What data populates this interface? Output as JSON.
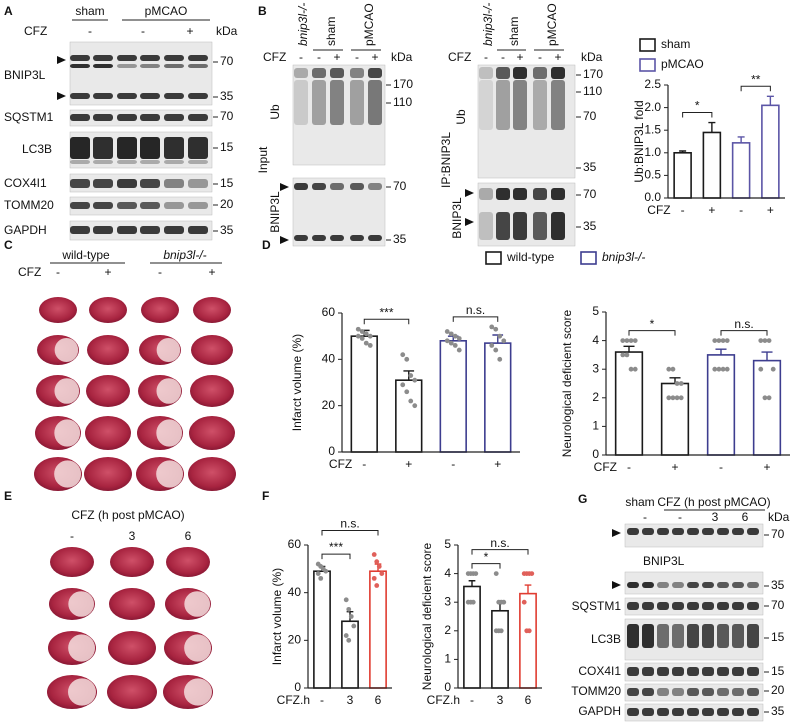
{
  "panels": {
    "A": {
      "label": "A",
      "groups": [
        "sham",
        "pMCAO"
      ],
      "treatment": "CFZ",
      "lanes": [
        "-",
        "-",
        "+"
      ],
      "unit": "kDa",
      "rows": [
        {
          "name": "BNIP3L",
          "markers": [
            70,
            35
          ]
        },
        {
          "name": "SQSTM1",
          "markers": [
            70
          ]
        },
        {
          "name": "LC3B",
          "markers": [
            15
          ]
        },
        {
          "name": "COX4I1",
          "markers": [
            15
          ]
        },
        {
          "name": "TOMM20",
          "markers": [
            20
          ]
        },
        {
          "name": "GAPDH",
          "markers": [
            35
          ]
        }
      ]
    },
    "B": {
      "label": "B",
      "input": {
        "title": "Input",
        "groups": [
          "bnip3l-/-",
          "sham",
          "pMCAO"
        ],
        "treatment": "CFZ",
        "lanes": [
          "-",
          "-",
          "+",
          "-",
          "+"
        ],
        "unit": "kDa",
        "rows": [
          {
            "name": "Ub",
            "markers": [
              170,
              110
            ]
          },
          {
            "name": "BNIP3L",
            "markers": [
              70,
              35
            ]
          }
        ]
      },
      "ip": {
        "title": "IP:BNIP3L",
        "groups": [
          "bnip3l-/-",
          "sham",
          "pMCAO"
        ],
        "treatment": "CFZ",
        "lanes": [
          "-",
          "-",
          "+",
          "-",
          "+"
        ],
        "unit": "kDa",
        "rows": [
          {
            "name": "Ub",
            "markers": [
              170,
              110,
              70,
              35
            ]
          },
          {
            "name": "BNIP3L",
            "markers": [
              70,
              35
            ]
          }
        ]
      }
    },
    "C": {
      "label": "C",
      "groups": [
        "wild-type",
        "bnip3l-/-"
      ],
      "treatment": "CFZ",
      "lanes": [
        "-",
        "+",
        "-",
        "+"
      ]
    },
    "D": {
      "label": "D"
    },
    "E": {
      "label": "E",
      "title": "CFZ (h post pMCAO)",
      "lanes": [
        "-",
        "3",
        "6"
      ]
    },
    "F": {
      "label": "F"
    },
    "G": {
      "label": "G",
      "groups": [
        "sham",
        "CFZ (h post pMCAO)"
      ],
      "lanes": [
        "-",
        "-",
        "3",
        "6"
      ],
      "unit": "kDa",
      "rows": [
        {
          "name": "BNIP3L",
          "markers": [
            70,
            35
          ]
        },
        {
          "name": "SQSTM1",
          "markers": [
            70
          ]
        },
        {
          "name": "LC3B",
          "markers": [
            15
          ]
        },
        {
          "name": "COX4I1",
          "markers": [
            15
          ]
        },
        {
          "name": "TOMM20",
          "markers": [
            20
          ]
        },
        {
          "name": "GAPDH",
          "markers": [
            35
          ]
        }
      ]
    }
  },
  "chart_data": [
    {
      "type": "bar",
      "ylabel": "Ub:BNIP3L fold",
      "xlabel": "CFZ",
      "categories": [
        "-",
        "+",
        "-",
        "+"
      ],
      "series": [
        {
          "name": "sham",
          "color": "#1a1a1a",
          "values": [
            1.0,
            1.45,
            null,
            null
          ],
          "errors": [
            0.04,
            0.22,
            null,
            null
          ]
        },
        {
          "name": "pMCAO",
          "color": "#5b55a6",
          "values": [
            null,
            null,
            1.22,
            2.05
          ],
          "errors": [
            null,
            null,
            0.13,
            0.2
          ]
        }
      ],
      "ylim": [
        0,
        2.5
      ],
      "yticks": [
        {
          "value": 0,
          "label": "0.0"
        },
        0.5,
        {
          "value": 1,
          "label": "1.0"
        },
        1.5,
        {
          "value": 2,
          "label": "2.0"
        },
        2.5
      ],
      "annotations": [
        {
          "text": "*",
          "between": [
            0,
            1
          ]
        },
        {
          "text": "**",
          "between": [
            2,
            3
          ]
        }
      ]
    },
    {
      "type": "bar",
      "ylabel": "Infarct volume (%)",
      "xlabel": "CFZ",
      "categories": [
        "-",
        "+",
        "-",
        "+"
      ],
      "series": [
        {
          "name": "wild-type",
          "color": "#1a1a1a",
          "point_color": "#8c8c8c",
          "values": [
            50,
            31,
            null,
            null
          ],
          "errors": [
            2.5,
            4,
            null,
            null
          ],
          "points": [
            [
              53,
              52,
              51,
              50,
              50,
              49,
              47,
              46
            ],
            [
              42,
              40,
              33,
              31,
              29,
              26,
              22,
              20
            ],
            null,
            null
          ]
        },
        {
          "name": "bnip3l-/-",
          "color": "#3d3d8f",
          "point_color": "#8c8c8c",
          "values": [
            null,
            null,
            48,
            47
          ],
          "errors": [
            null,
            null,
            2,
            3.5
          ],
          "points": [
            null,
            null,
            [
              52,
              51,
              50,
              49,
              48,
              47,
              46,
              44
            ],
            [
              54,
              53,
              50,
              48,
              46,
              44,
              40
            ]
          ]
        }
      ],
      "ylim": [
        0,
        60
      ],
      "yticks": [
        0,
        20,
        40,
        60
      ],
      "annotations": [
        {
          "text": "***",
          "between": [
            0,
            1
          ]
        },
        {
          "text": "n.s.",
          "between": [
            2,
            3
          ]
        }
      ]
    },
    {
      "type": "bar",
      "ylabel": "Neurological deficient score",
      "xlabel": "CFZ",
      "categories": [
        "-",
        "+",
        "-",
        "+"
      ],
      "series": [
        {
          "color": "#1a1a1a",
          "point_color": "#8c8c8c",
          "values": [
            3.6,
            2.5,
            null,
            null
          ],
          "errors": [
            0.2,
            0.2,
            null,
            null
          ],
          "points": [
            [
              4,
              4,
              4,
              4,
              3.5,
              3.5,
              3,
              3
            ],
            [
              3,
              3,
              2.5,
              2.5,
              2,
              2,
              2,
              2
            ],
            null,
            null
          ]
        },
        {
          "color": "#3d3d8f",
          "point_color": "#8c8c8c",
          "values": [
            null,
            null,
            3.5,
            3.3
          ],
          "errors": [
            null,
            null,
            0.2,
            0.3
          ],
          "points": [
            null,
            null,
            [
              4,
              4,
              4,
              4,
              3,
              3,
              3,
              3
            ],
            [
              4,
              4,
              4,
              3,
              3,
              2,
              2
            ]
          ]
        }
      ],
      "ylim": [
        0,
        5
      ],
      "yticks": [
        0,
        1,
        2,
        3,
        4,
        5
      ],
      "annotations": [
        {
          "text": "*",
          "between": [
            0,
            1
          ]
        },
        {
          "text": "n.s.",
          "between": [
            2,
            3
          ]
        }
      ]
    },
    {
      "type": "bar",
      "ylabel": "Infarct volume (%)",
      "xlabel": "CFZ.h",
      "categories": [
        "-",
        "3",
        "6"
      ],
      "values": [
        49,
        28,
        49
      ],
      "errors": [
        2,
        4,
        3
      ],
      "colors": [
        "#1a1a1a",
        "#1a1a1a",
        "#e03c31"
      ],
      "point_colors": [
        "#8c8c8c",
        "#8c8c8c",
        "#e0605a"
      ],
      "points": [
        [
          52,
          51,
          50,
          49,
          48,
          46
        ],
        [
          37,
          33,
          30,
          26,
          22,
          20
        ],
        [
          56,
          53,
          51,
          48,
          46,
          43
        ]
      ],
      "ylim": [
        0,
        60
      ],
      "yticks": [
        0,
        20,
        40,
        60
      ],
      "annotations": [
        {
          "text": "***",
          "between": [
            0,
            1
          ]
        },
        {
          "text": "n.s.",
          "between": [
            0,
            2
          ]
        }
      ]
    },
    {
      "type": "bar",
      "ylabel": "Neurological deficient score",
      "xlabel": "CFZ.h",
      "categories": [
        "-",
        "3",
        "6"
      ],
      "values": [
        3.55,
        2.7,
        3.3
      ],
      "errors": [
        0.2,
        0.3,
        0.3
      ],
      "colors": [
        "#1a1a1a",
        "#1a1a1a",
        "#e03c31"
      ],
      "point_colors": [
        "#8c8c8c",
        "#8c8c8c",
        "#e0605a"
      ],
      "points": [
        [
          4,
          4,
          4,
          4,
          3,
          3,
          3
        ],
        [
          4,
          3,
          3,
          3,
          2,
          2,
          2
        ],
        [
          4,
          4,
          4,
          4,
          3,
          2,
          2
        ]
      ],
      "ylim": [
        0,
        5
      ],
      "yticks": [
        0,
        1,
        2,
        3,
        4,
        5
      ],
      "annotations": [
        {
          "text": "*",
          "between": [
            0,
            1
          ]
        },
        {
          "text": "n.s.",
          "between": [
            0,
            2
          ]
        }
      ]
    }
  ]
}
